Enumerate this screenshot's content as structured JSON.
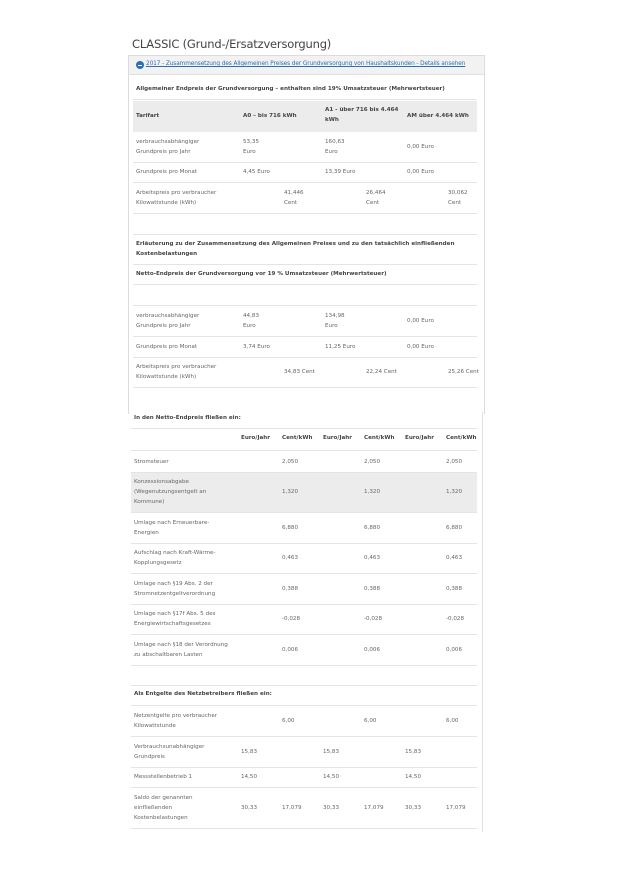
{
  "title": "CLASSIC (Grund-/Ersatzversorgung)",
  "details_link": "2017 - Zusammensetzung des Allgemeinen Preises der Grundversorgung von Haushaltskunden - Details ansehen",
  "brutto": {
    "heading": "Allgemeiner Endpreis der Grundversorgung – enthalten sind 19% Umsatzsteuer (Mehrwertsteuer)",
    "col_tarifart": "Tarifart",
    "col_a0": "A0 – bis 716 kWh",
    "col_a1_line1": "A1 - über 716 bis 4.464",
    "col_a1_line2": "kWh",
    "col_am": "AM über 4.464 kWh",
    "row1_label1": "verbrauchsabhängiger",
    "row1_label2": "Grundpreis pro Jahr",
    "row1_a0_v": "53,35",
    "row1_a0_u": "Euro",
    "row1_a1_v": "160,63",
    "row1_a1_u": "Euro",
    "row1_am": "0,00 Euro",
    "row2_label": "Grundpreis pro Monat",
    "row2_a0": "4,45 Euro",
    "row2_a1": "13,39 Euro",
    "row2_am": "0,00 Euro",
    "row3_label1": "Arbeitspreis pro verbraucher",
    "row3_label2": "Kilowattstunde (kWh)",
    "row3_a0_v": "41,446",
    "row3_a0_u": "Cent",
    "row3_a1_v": "26,464",
    "row3_a1_u": "Cent",
    "row3_am_v": "30,062",
    "row3_am_u": "Cent"
  },
  "erlaeuterung1": "Erläuterung zu der Zusammensetzung des Allgemeinen Preises und zu den tatsächlich einfließenden",
  "erlaeuterung2": "Kostenbelastungen",
  "netto": {
    "heading": "Netto-Endpreis der Grundversorgung vor 19 % Umsatzsteuer (Mehrwertsteuer)",
    "row1_label1": "verbrauchsabhängiger",
    "row1_label2": "Grundpreis pro Jahr",
    "row1_a0_v": "44,83",
    "row1_a0_u": "Euro",
    "row1_a1_v": "134,98",
    "row1_a1_u": "Euro",
    "row1_am": "0,00 Euro",
    "row2_label": "Grundpreis pro Monat",
    "row2_a0": "3,74 Euro",
    "row2_a1": "11,25 Euro",
    "row2_am": "0,00 Euro",
    "row3_label1": "Arbeitspreis pro verbraucher",
    "row3_label2": "Kilowattstunde (kWh)",
    "row3_a0": "34,83 Cent",
    "row3_a1": "22,24 Cent",
    "row3_am": "25,26 Cent"
  },
  "components": {
    "heading": "In den Netto-Endpreis fließen ein:",
    "headers": [
      "Euro/Jahr",
      "Cent/kWh",
      "Euro/Jahr",
      "Cent/kWh",
      "Euro/Jahr",
      "Cent/kWh"
    ],
    "rows": [
      {
        "label": [
          "Stromsteuer"
        ],
        "ct": "2,050"
      },
      {
        "label": [
          "Konzessionsabgabe",
          "(Wegenutzungsentgelt an",
          "Kommune)"
        ],
        "ct": "1,320"
      },
      {
        "label": [
          "Umlage nach Erneuerbare-",
          "Energien"
        ],
        "ct": "6,880"
      },
      {
        "label": [
          "Aufschlag nach Kraft-Wärme-",
          "Kopplungsgesetz"
        ],
        "ct": "0,463"
      },
      {
        "label": [
          "Umlage nach §19 Abs. 2 der",
          "Stromnetzentgeltverordnung"
        ],
        "ct": "0,388"
      },
      {
        "label": [
          "Umlage nach §17f Abs. 5 des",
          "Energiewirtschaftsgesetzes"
        ],
        "ct": "-0,028"
      },
      {
        "label": [
          "Umlage nach §18 der Verordnung",
          "zu abschaltbaren Lasten"
        ],
        "ct": "0,006"
      }
    ]
  },
  "netz": {
    "heading": "Als Entgelte des Netzbetreibers fließen ein:",
    "rows": [
      {
        "label": [
          "Netzentgelte pro verbraucher",
          "Kilowattstunde"
        ],
        "eur": "",
        "ct": "6,00"
      },
      {
        "label": [
          "Verbrauchsunabhängiger",
          "Grundpreis"
        ],
        "eur": "15,83",
        "ct": ""
      },
      {
        "label": [
          "Messstellenbetrieb 1"
        ],
        "eur": "14,50",
        "ct": ""
      },
      {
        "label": [
          "Saldo der genannten",
          "einfließenden",
          "Kostenbelastungen"
        ],
        "eur": "30,33",
        "ct": "17,079"
      }
    ]
  }
}
